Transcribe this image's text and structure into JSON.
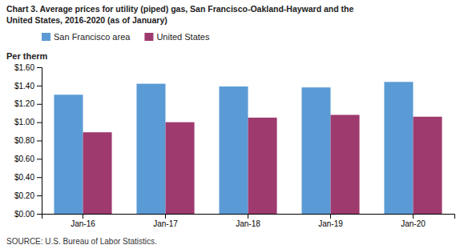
{
  "chart_data": {
    "type": "bar",
    "title": "Chart 3. Average prices for utility (piped) gas, San Francisco-Oakland-Hayward and the\nUnited States, 2016-2020  (as of January)",
    "y_label": "Per therm",
    "source": "SOURCE: U.S. Bureau of Labor Statistics.",
    "categories": [
      "Jan-16",
      "Jan-17",
      "Jan-18",
      "Jan-19",
      "Jan-20"
    ],
    "series": [
      {
        "name": "San Francisco area",
        "color": "#5B9BD5",
        "values": [
          1.3,
          1.42,
          1.39,
          1.38,
          1.44
        ]
      },
      {
        "name": "United States",
        "color": "#9E3A6E",
        "values": [
          0.89,
          1.0,
          1.05,
          1.08,
          1.06
        ]
      }
    ],
    "ylim": [
      0,
      1.6
    ],
    "yticks": [
      {
        "value": 0.0,
        "label": "$0.00"
      },
      {
        "value": 0.2,
        "label": "$0.20"
      },
      {
        "value": 0.4,
        "label": "$0.40"
      },
      {
        "value": 0.6,
        "label": "$0.60"
      },
      {
        "value": 0.8,
        "label": "$0.80"
      },
      {
        "value": 1.0,
        "label": "$1.00"
      },
      {
        "value": 1.2,
        "label": "$1.20"
      },
      {
        "value": 1.4,
        "label": "$1.40"
      },
      {
        "value": 1.6,
        "label": "$1.60"
      }
    ],
    "grid": false,
    "legend": "top-left"
  }
}
